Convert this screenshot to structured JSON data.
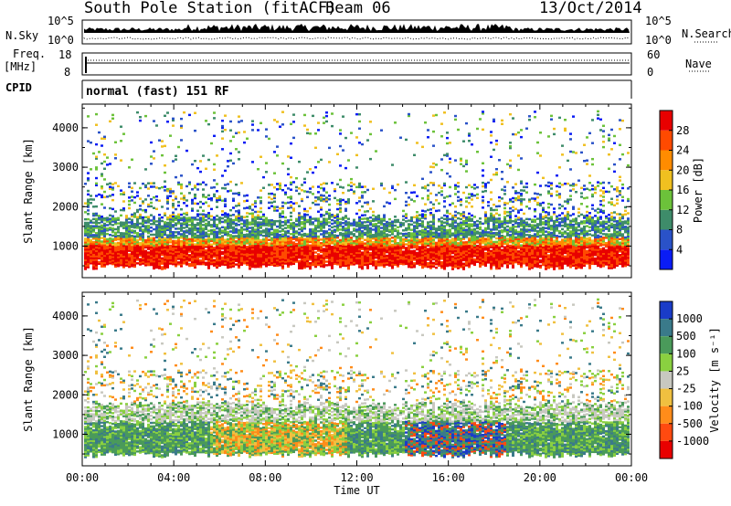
{
  "header": {
    "station": "South Pole Station (fitACF)",
    "beam": "Beam 06",
    "date": "13/Oct/2014"
  },
  "left_labels": {
    "nsky": "N.Sky",
    "freq": "Freq.",
    "freq_unit": "[MHz]",
    "cpid": "CPID"
  },
  "right_labels": {
    "nsearch": "N.Search",
    "nave": "Nave"
  },
  "cpid_text": "normal (fast) 151 RF",
  "nsky_ticks": [
    "10^5",
    "10^0"
  ],
  "nsearch_ticks": [
    "10^5",
    "10^0"
  ],
  "freq_ticks": [
    "18",
    "8"
  ],
  "nave_ticks": [
    "60",
    "0"
  ],
  "chart_data": [
    {
      "type": "heatmap",
      "name": "power",
      "ylabel": "Slant Range [km]",
      "xlabel": "Time UT",
      "x_ticks": [
        "00:00",
        "04:00",
        "08:00",
        "12:00",
        "16:00",
        "20:00",
        "00:00"
      ],
      "y_ticks": [
        1000,
        2000,
        3000,
        4000
      ],
      "ylim": [
        200,
        4600
      ],
      "xlim_hours": [
        0,
        24
      ],
      "colorbar_label": "Power [dB]",
      "colorbar_ticks": [
        "4",
        "8",
        "12",
        "16",
        "20",
        "24",
        "28"
      ],
      "colorbar_colors": [
        "#0a1cf5",
        "#2a52c8",
        "#3e8c6a",
        "#6cc23a",
        "#f0c020",
        "#ff8c00",
        "#ff4a00",
        "#e80000"
      ]
    },
    {
      "type": "heatmap",
      "name": "velocity",
      "ylabel": "Slant Range [km]",
      "xlabel": "Time UT",
      "x_ticks": [
        "00:00",
        "04:00",
        "08:00",
        "12:00",
        "16:00",
        "20:00",
        "00:00"
      ],
      "y_ticks": [
        1000,
        2000,
        3000,
        4000
      ],
      "ylim": [
        200,
        4600
      ],
      "xlim_hours": [
        0,
        24
      ],
      "colorbar_label": "Velocity [m s⁻¹]",
      "colorbar_ticks": [
        "1000",
        "500",
        "100",
        "25",
        "-25",
        "-100",
        "-500",
        "-1000"
      ],
      "colorbar_colors": [
        "#1a3cc8",
        "#3a7a8a",
        "#4a9a5a",
        "#8ad040",
        "#c8c8c0",
        "#f0c040",
        "#ff8c1a",
        "#ff4a10",
        "#e80000"
      ]
    }
  ],
  "time_axis": {
    "xlabel": "Time UT"
  },
  "colors": {
    "frame": "#000000",
    "background": "#ffffff"
  }
}
